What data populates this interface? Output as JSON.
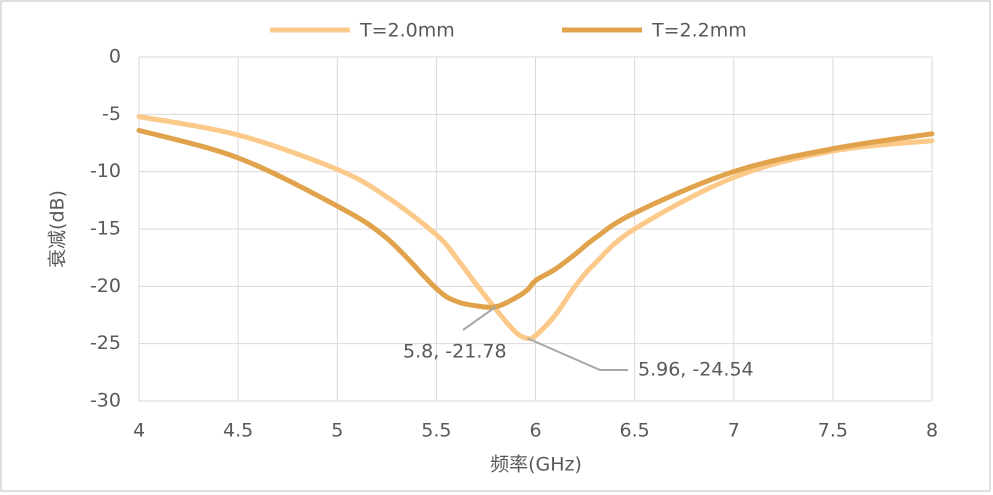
{
  "chart_data": {
    "type": "line",
    "x_label": "频率(GHz)",
    "y_label": "衰减(dB)",
    "x": [
      4,
      4.5,
      5,
      5.25,
      5.5,
      5.6,
      5.7,
      5.8,
      5.9,
      5.96,
      6,
      6.1,
      6.2,
      6.3,
      6.5,
      7,
      7.5,
      8
    ],
    "series": [
      {
        "name": "T=2.0mm",
        "color": "#fbc98a",
        "values": [
          -5.2,
          -6.8,
          -9.8,
          -12.2,
          -15.5,
          -17.5,
          -19.8,
          -22,
          -24,
          -24.54,
          -24.3,
          -22.5,
          -20,
          -18,
          -15,
          -10.5,
          -8.2,
          -7.3
        ]
      },
      {
        "name": "T=2.2mm",
        "color": "#e0a24a",
        "values": [
          -6.4,
          -8.8,
          -13,
          -15.8,
          -20.2,
          -21.3,
          -21.7,
          -21.78,
          -21,
          -20.3,
          -19.5,
          -18.5,
          -17.2,
          -15.8,
          -13.6,
          -10,
          -8,
          -6.7
        ]
      }
    ],
    "annotations": [
      "5.8, -21.78",
      "5.96, -24.54"
    ],
    "xlim": [
      4,
      8
    ],
    "xticks": [
      4,
      4.5,
      5,
      5.5,
      6,
      6.5,
      7,
      7.5,
      8
    ],
    "ylim": [
      -30,
      0
    ],
    "yticks": [
      0,
      -5,
      -10,
      -15,
      -20,
      -25,
      -30
    ],
    "grid": true,
    "legend": "top"
  }
}
